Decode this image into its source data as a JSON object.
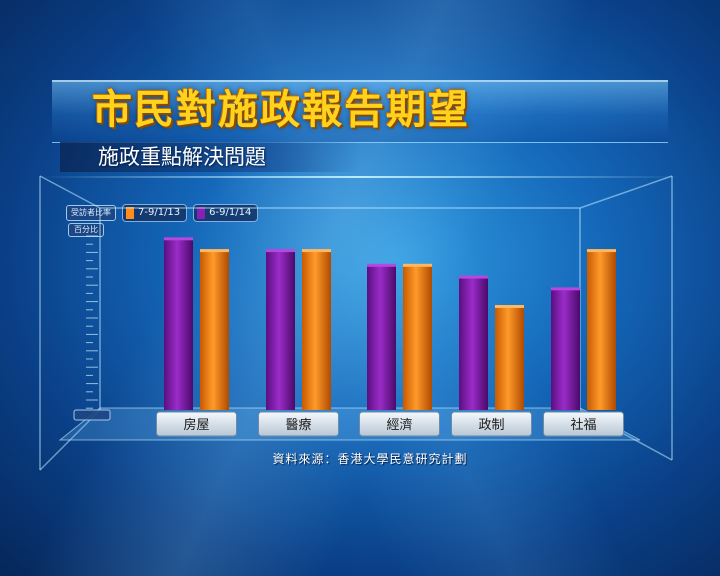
{
  "title": "市民對施政報告期望",
  "subtitle": "施政重點解決問題",
  "legend_tag": "受訪者比率",
  "unit_tag": "百分比",
  "source": "資料來源：香港大學民意研究計劃",
  "colors": {
    "series_2013": "#ff8c1a",
    "series_2014": "#8a1fb5",
    "title": "#ffd21e",
    "background": "#1466b8"
  },
  "chart_data": {
    "type": "bar",
    "categories": [
      "房屋",
      "醫療",
      "經濟",
      "政制",
      "社福"
    ],
    "series": [
      {
        "name": "6-9/1/14",
        "values": [
          58,
          54,
          49,
          45,
          41
        ]
      },
      {
        "name": "7-9/1/13",
        "values": [
          54,
          54,
          49,
          35,
          54
        ]
      }
    ],
    "ylim": [
      0,
      70
    ],
    "grid": false,
    "legend_position": "top-left"
  }
}
